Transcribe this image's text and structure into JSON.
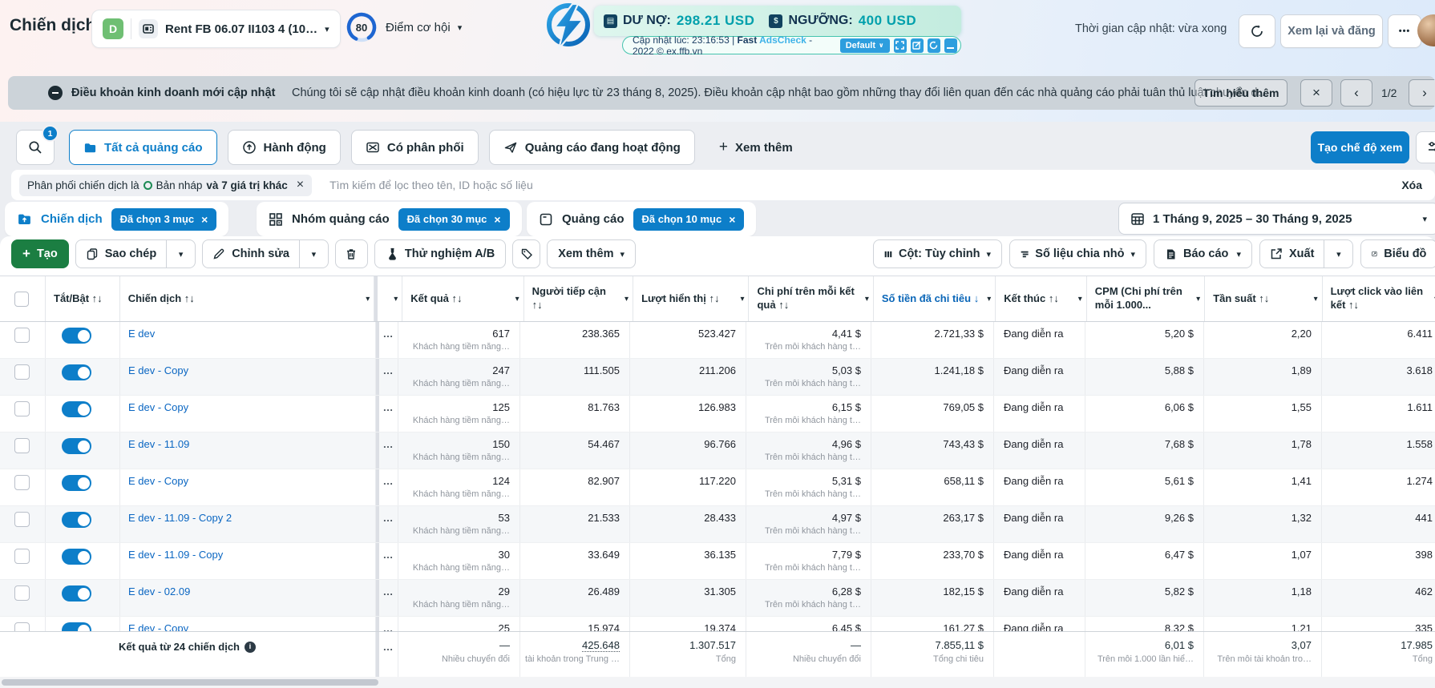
{
  "header": {
    "page_title": "Chiến dịch",
    "account": {
      "badge": "D",
      "name": "Rent FB 06.07 II103 4 (10…"
    },
    "score": {
      "value": "80",
      "label": "Điểm cơ hội"
    },
    "update_time": "Thời gian cập nhật: vừa xong",
    "review_button": "Xem lại và đăng",
    "more_button": "•••"
  },
  "adscheck": {
    "balance_label": "DƯ NỢ:",
    "balance_value": "298.21 USD",
    "threshold_label": "NGƯỠNG:",
    "threshold_value": "400 USD",
    "status_prefix": "Cập nhật lúc: 23:16:53 | ",
    "brand_bold": "Fast",
    "brand_accent": " AdsCheck",
    "status_suffix": " - 2022 © ex.ffb.vn",
    "default_button": "Default"
  },
  "notice": {
    "title": "Điều khoản kinh doanh mới cập nhật",
    "message": "Chúng tôi sẽ cập nhật điều khoản kinh doanh (có hiệu lực từ 23 tháng 8, 2025). Điều khoản cập nhật bao gồm những thay đổi liên quan đến các nhà quảng cáo phải tuân thủ luật chuyển d…",
    "learn_more": "Tìm hiểu thêm",
    "page_indicator": "1/2"
  },
  "filter_tabs": {
    "search_badge": "1",
    "tabs": [
      {
        "label": "Tất cả quảng cáo"
      },
      {
        "label": "Hành động"
      },
      {
        "label": "Có phân phối"
      },
      {
        "label": "Quảng cáo đang hoạt động"
      }
    ],
    "more_label": "Xem thêm",
    "create_view": "Tạo chế độ xem"
  },
  "filter_bar": {
    "chip_prefix": "Phân phối chiến dịch là",
    "chip_value": "Bản nháp",
    "chip_suffix": "và 7 giá trị khác",
    "search_placeholder": "Tìm kiếm để lọc theo tên, ID hoặc số liệu",
    "clear_label": "Xóa"
  },
  "level_tabs": [
    {
      "label": "Chiến dịch",
      "chip": "Đã chọn 3 mục"
    },
    {
      "label": "Nhóm quảng cáo",
      "chip": "Đã chọn 30 mục"
    },
    {
      "label": "Quảng cáo",
      "chip": "Đã chọn 10 mục"
    }
  ],
  "date_range": "1 Tháng 9, 2025 – 30 Tháng 9, 2025",
  "toolbar": {
    "create": "Tạo",
    "duplicate": "Sao chép",
    "edit": "Chỉnh sửa",
    "ab_test": "Thử nghiệm A/B",
    "more": "Xem thêm",
    "columns": "Cột: Tùy chỉnh",
    "breakdown": "Số liệu chia nhỏ",
    "reports": "Báo cáo",
    "export": "Xuất",
    "charts": "Biểu đồ"
  },
  "icons": {
    "caret": "▾",
    "plus": "+",
    "close": "×",
    "chev_left": "‹",
    "chev_right": "›",
    "ellipsis": "…"
  },
  "table": {
    "columns": [
      {
        "label": "",
        "type": "checkbox"
      },
      {
        "label": "Tắt/Bật",
        "sort": "↑↓"
      },
      {
        "label": "Chiến dịch",
        "sort": "↑↓",
        "caret": true
      },
      {
        "label": "",
        "caret": true
      },
      {
        "label": "Kết quả",
        "sort": "↑↓",
        "caret": true
      },
      {
        "label": "Người tiếp cận",
        "sort": "↑↓",
        "caret": true
      },
      {
        "label": "Lượt hiển thị",
        "sort": "↑↓",
        "caret": true
      },
      {
        "label": "Chi phí trên mỗi kết quả",
        "sort": "↑↓",
        "caret": true
      },
      {
        "label": "Số tiền đã chi tiêu",
        "sort": "↓",
        "caret": true,
        "active": true
      },
      {
        "label": "Kết thúc",
        "sort": "↑↓",
        "caret": true
      },
      {
        "label": "CPM (Chi phí trên mỗi 1.000...",
        "sort": "",
        "caret": true
      },
      {
        "label": "Tần suất",
        "sort": "↑↓",
        "caret": true
      },
      {
        "label": "Lượt click vào liên kết",
        "sort": "↑↓",
        "caret": true
      }
    ],
    "row_subs": {
      "results": "Khách hàng tiềm năng…",
      "cost_per_result": "Trên mỗi khách hàng t…"
    },
    "rows": [
      {
        "name": "E dev",
        "results": "617",
        "reach": "238.365",
        "impressions": "523.427",
        "cost_per_result": "4,41 $",
        "amount_spent": "2.721,33 $",
        "ends": "Đang diễn ra",
        "cpm": "5,20 $",
        "frequency": "2,20",
        "link_clicks": "6.411"
      },
      {
        "name": "E dev - Copy",
        "results": "247",
        "reach": "111.505",
        "impressions": "211.206",
        "cost_per_result": "5,03 $",
        "amount_spent": "1.241,18 $",
        "ends": "Đang diễn ra",
        "cpm": "5,88 $",
        "frequency": "1,89",
        "link_clicks": "3.618"
      },
      {
        "name": "E dev - Copy",
        "results": "125",
        "reach": "81.763",
        "impressions": "126.983",
        "cost_per_result": "6,15 $",
        "amount_spent": "769,05 $",
        "ends": "Đang diễn ra",
        "cpm": "6,06 $",
        "frequency": "1,55",
        "link_clicks": "1.611"
      },
      {
        "name": "E dev - 11.09",
        "results": "150",
        "reach": "54.467",
        "impressions": "96.766",
        "cost_per_result": "4,96 $",
        "amount_spent": "743,43 $",
        "ends": "Đang diễn ra",
        "cpm": "7,68 $",
        "frequency": "1,78",
        "link_clicks": "1.558"
      },
      {
        "name": "E dev - Copy",
        "results": "124",
        "reach": "82.907",
        "impressions": "117.220",
        "cost_per_result": "5,31 $",
        "amount_spent": "658,11 $",
        "ends": "Đang diễn ra",
        "cpm": "5,61 $",
        "frequency": "1,41",
        "link_clicks": "1.274"
      },
      {
        "name": "E dev - 11.09 - Copy 2",
        "results": "53",
        "reach": "21.533",
        "impressions": "28.433",
        "cost_per_result": "4,97 $",
        "amount_spent": "263,17 $",
        "ends": "Đang diễn ra",
        "cpm": "9,26 $",
        "frequency": "1,32",
        "link_clicks": "441"
      },
      {
        "name": "E dev - 11.09 - Copy",
        "results": "30",
        "reach": "33.649",
        "impressions": "36.135",
        "cost_per_result": "7,79 $",
        "amount_spent": "233,70 $",
        "ends": "Đang diễn ra",
        "cpm": "6,47 $",
        "frequency": "1,07",
        "link_clicks": "398"
      },
      {
        "name": "E dev - 02.09",
        "results": "29",
        "reach": "26.489",
        "impressions": "31.305",
        "cost_per_result": "6,28 $",
        "amount_spent": "182,15 $",
        "ends": "Đang diễn ra",
        "cpm": "5,82 $",
        "frequency": "1,18",
        "link_clicks": "462"
      },
      {
        "name": "E dev - Copy",
        "results": "25",
        "reach": "15.974",
        "impressions": "19.374",
        "cost_per_result": "6,45 $",
        "amount_spent": "161,27 $",
        "ends": "Đang diễn ra",
        "cpm": "8,32 $",
        "frequency": "1,21",
        "link_clicks": "335"
      }
    ],
    "summary": {
      "label": "Kết quả từ 24 chiến dịch",
      "results": {
        "v": "—",
        "sub": "Nhiều chuyển đổi"
      },
      "reach": {
        "v": "425.648",
        "sub": "tài khoản trong Trung …"
      },
      "impressions": {
        "v": "1.307.517",
        "sub": "Tổng"
      },
      "cost_per_result": {
        "v": "—",
        "sub": "Nhiều chuyển đổi"
      },
      "amount_spent": {
        "v": "7.855,11 $",
        "sub": "Tổng chi tiêu"
      },
      "ends": {
        "v": "",
        "sub": ""
      },
      "cpm": {
        "v": "6,01 $",
        "sub": "Trên mỗi 1.000 lần hiể…"
      },
      "frequency": {
        "v": "3,07",
        "sub": "Trên mỗi tài khoản tro…"
      },
      "link_clicks": {
        "v": "17.985",
        "sub": "Tổng"
      }
    }
  }
}
